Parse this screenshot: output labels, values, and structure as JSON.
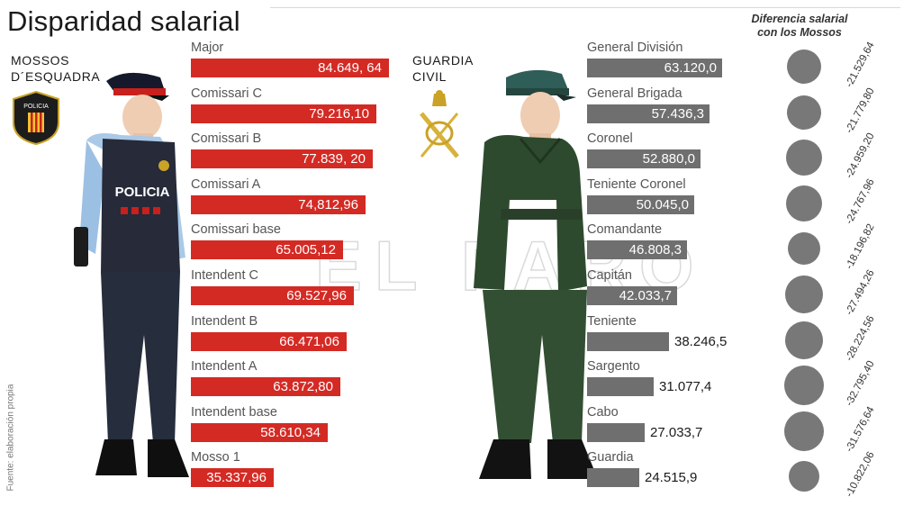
{
  "title": "Disparidad salarial",
  "source": "Fuente: elaboración propia",
  "watermark": "EL FARO",
  "mossos": {
    "label": "MOSSOS\nD´ESQUADRA",
    "vest_text": "POLICIA",
    "badge_text": "POLICIA"
  },
  "guardia": {
    "label": "GUARDIA\nCIVIL"
  },
  "diff_header": "Diferencia salarial\ncon los Mossos",
  "colors": {
    "mossos_bar": "#d42a24",
    "guardia_bar": "#6f6f6f",
    "circle": "#787878"
  },
  "chart_data": [
    {
      "type": "bar",
      "orientation": "horizontal",
      "categories": [
        "Major",
        "Comissari C",
        "Comissari B",
        "Comissari A",
        "Comissari base",
        "Intendent C",
        "Intendent B",
        "Intendent A",
        "Intendent base",
        "Mosso 1"
      ],
      "values": [
        84649.64,
        79216.1,
        77839.2,
        74812.96,
        65005.12,
        69527.96,
        66471.06,
        63872.8,
        58610.34,
        35337.96
      ],
      "value_labels": [
        "84.649, 64",
        "79.216,10",
        "77.839, 20",
        "74,812,96",
        "65.005,12",
        "69.527,96",
        "66.471,06",
        "63.872,80",
        "58.610,34",
        "35.337,96"
      ]
    },
    {
      "type": "bar",
      "orientation": "horizontal",
      "categories": [
        "General División",
        "General Brigada",
        "Coronel",
        "Teniente Coronel",
        "Comandante",
        "Capitán",
        "Teniente",
        "Sargento",
        "Cabo",
        "Guardia"
      ],
      "values": [
        63120.0,
        57436.3,
        52880.0,
        50045.0,
        46808.3,
        42033.7,
        38246.5,
        31077.4,
        27033.7,
        24515.9
      ],
      "value_labels": [
        "63.120,0",
        "57.436,3",
        "52.880,0",
        "50.045,0",
        "46.808,3",
        "42.033,7",
        "38.246,5",
        "31.077,4",
        "27.033,7",
        "24.515,9"
      ]
    },
    {
      "type": "scatter",
      "title": "Diferencia salarial con los Mossos",
      "values": [
        -21529.64,
        -21779.8,
        -24959.2,
        -24767.96,
        -18196.82,
        -27494.26,
        -28224.56,
        -32795.4,
        -31576.64,
        -10822.06
      ],
      "value_labels": [
        "-21.529,64",
        "-21.779,80",
        "-24.959,20",
        "-24.767,96",
        "-18.196,82",
        "-27.494,26",
        "-28.224,56",
        "-32.795,40",
        "-31.576,64",
        "-10.822,06"
      ]
    }
  ]
}
